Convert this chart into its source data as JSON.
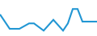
{
  "x": [
    0,
    2,
    4,
    6,
    7,
    9,
    11,
    13,
    14,
    15,
    16,
    17,
    18,
    20
  ],
  "y": [
    0.6,
    0.2,
    0.2,
    0.35,
    0.35,
    0.15,
    0.45,
    0.15,
    0.35,
    0.75,
    0.75,
    0.4,
    0.4,
    0.4
  ],
  "line_color": "#2196d3",
  "line_width": 1.5,
  "background_color": "#ffffff",
  "ylim": [
    0.0,
    1.0
  ],
  "xlim": [
    0,
    20
  ]
}
